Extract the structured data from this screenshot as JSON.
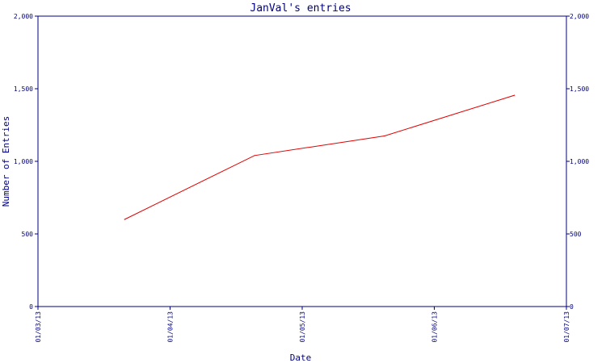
{
  "chart_data": {
    "type": "line",
    "title": "JanVal's entries",
    "xlabel": "Date",
    "ylabel": "Number of Entries",
    "x_ticks": [
      "01/03/13",
      "01/04/13",
      "01/05/13",
      "01/06/13",
      "01/07/13"
    ],
    "y_ticks": [
      "0",
      "500",
      "1,000",
      "1,500",
      "2,000"
    ],
    "ylim": [
      0,
      2000
    ],
    "xlim": [
      "2013-03-01",
      "2013-07-01"
    ],
    "series": [
      {
        "x": [
          "2013-03-21",
          "2013-04-20",
          "2013-05-20",
          "2013-06-19"
        ],
        "values": [
          600,
          1040,
          1175,
          1455
        ]
      }
    ],
    "grid": false,
    "right_axis_mirrored": true
  },
  "colors": {
    "axis": "#000080",
    "line": "#e00000",
    "text": "#000080"
  }
}
